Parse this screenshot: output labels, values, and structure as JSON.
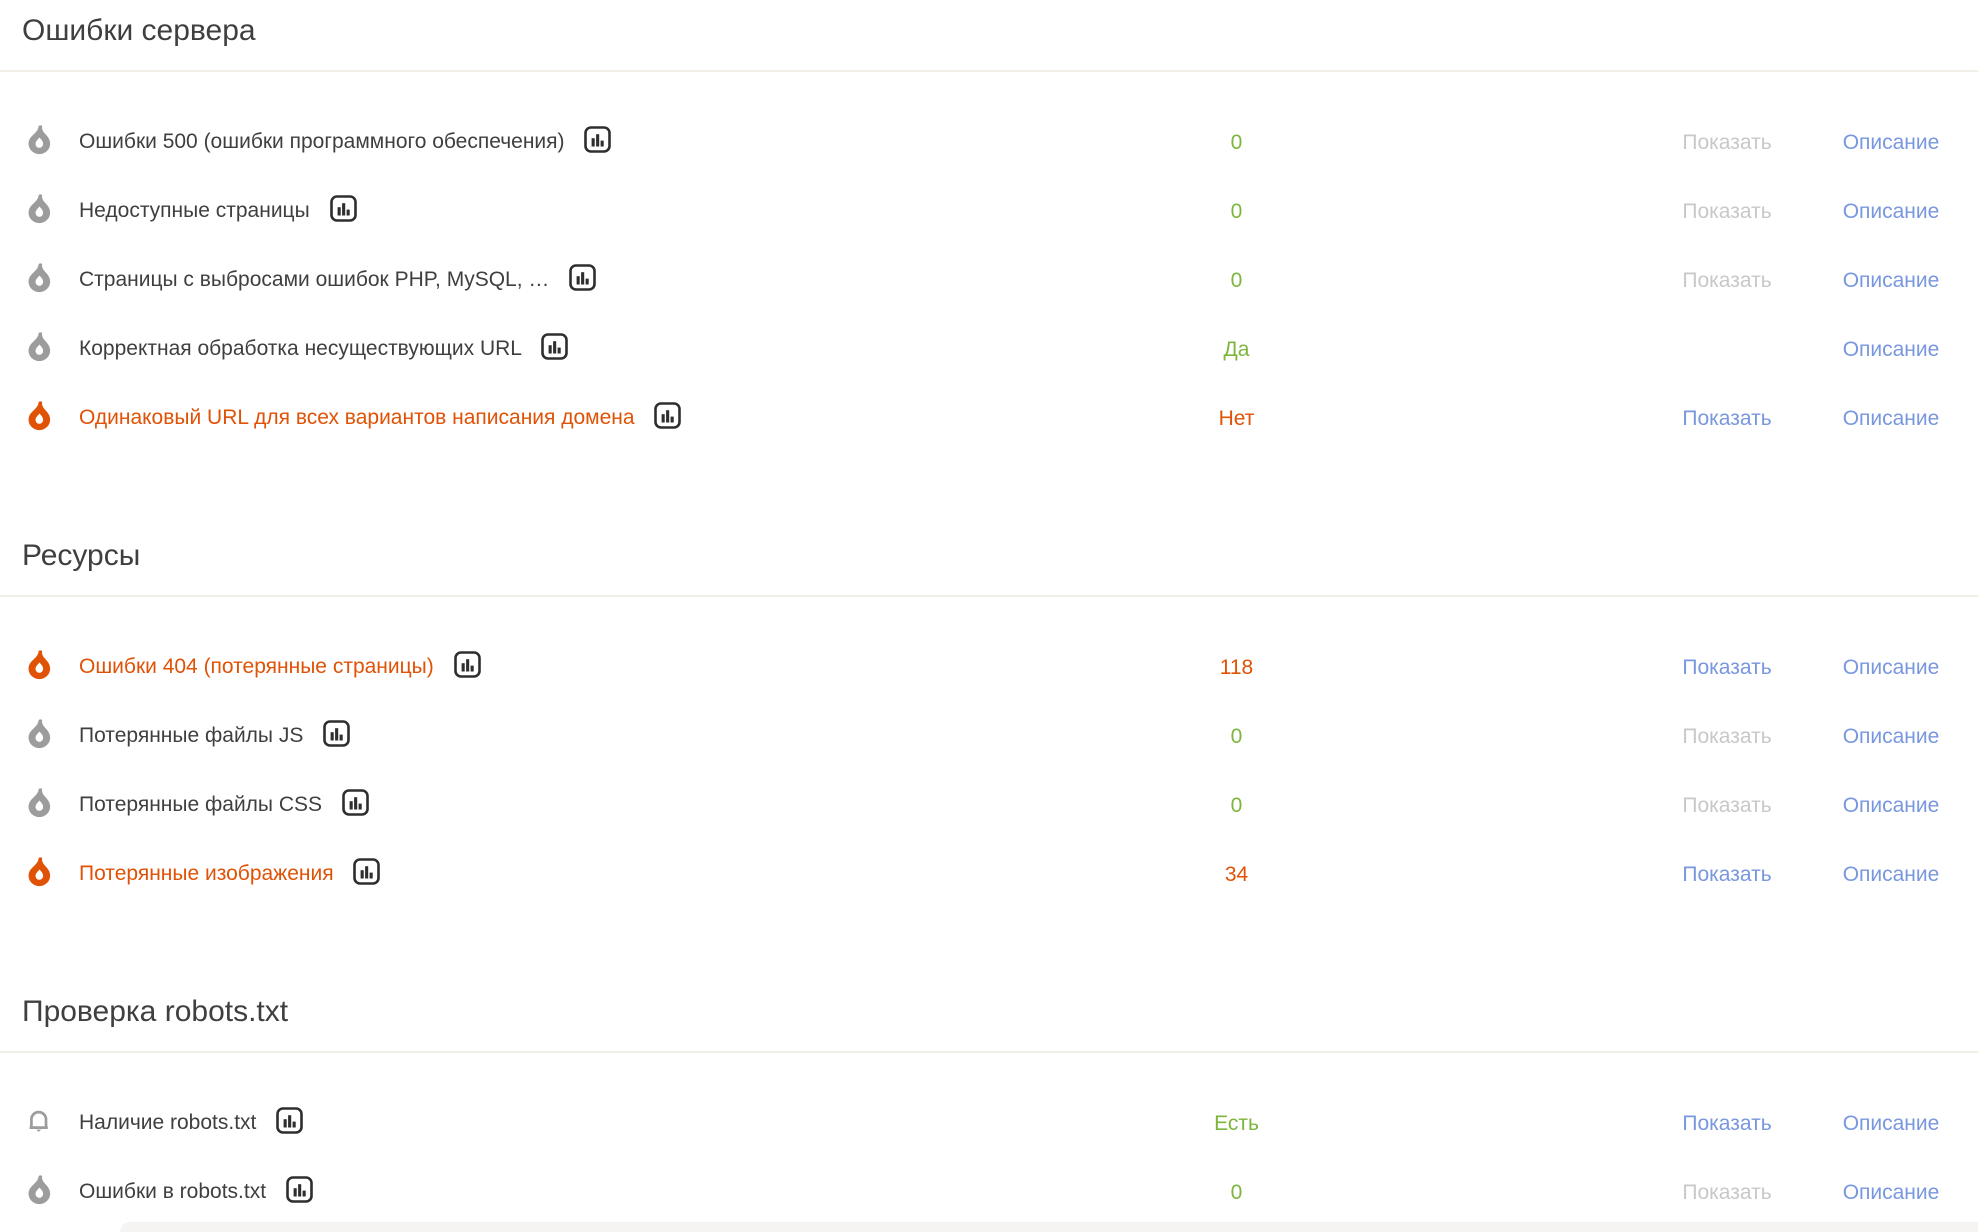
{
  "colors": {
    "accent_error": "#e05206",
    "accent_good": "#7db53d",
    "link_active": "#7897de",
    "link_disabled": "#c8c8c8",
    "icon_grey": "#9c9c9c",
    "text": "#3f3f3f",
    "divider": "#f1efe8"
  },
  "link_labels": {
    "show": "Показать",
    "description": "Описание"
  },
  "icon_names": {
    "flame": "flame-icon",
    "bell": "bell-icon",
    "chart": "bar-chart-icon"
  },
  "sections": [
    {
      "title": "Ошибки сервера",
      "rows": [
        {
          "icon": "flame",
          "severity": "normal",
          "label": "Ошибки 500 (ошибки программного обеспечения)",
          "value": "0",
          "value_state": "good",
          "show": "disabled"
        },
        {
          "icon": "flame",
          "severity": "normal",
          "label": "Недоступные страницы",
          "value": "0",
          "value_state": "good",
          "show": "disabled"
        },
        {
          "icon": "flame",
          "severity": "normal",
          "label": "Страницы с выбросами ошибок PHP, MySQL, …",
          "value": "0",
          "value_state": "good",
          "show": "disabled"
        },
        {
          "icon": "flame",
          "severity": "normal",
          "label": "Корректная обработка несуществующих URL",
          "value": "Да",
          "value_state": "good",
          "show": "none"
        },
        {
          "icon": "flame",
          "severity": "error",
          "label": "Одинаковый URL для всех вариантов написания домена",
          "value": "Нет",
          "value_state": "bad",
          "show": "active"
        }
      ]
    },
    {
      "title": "Ресурсы",
      "rows": [
        {
          "icon": "flame",
          "severity": "error",
          "label": "Ошибки 404 (потерянные страницы)",
          "value": "118",
          "value_state": "bad",
          "show": "active"
        },
        {
          "icon": "flame",
          "severity": "normal",
          "label": "Потерянные файлы JS",
          "value": "0",
          "value_state": "good",
          "show": "disabled"
        },
        {
          "icon": "flame",
          "severity": "normal",
          "label": "Потерянные файлы CSS",
          "value": "0",
          "value_state": "good",
          "show": "disabled"
        },
        {
          "icon": "flame",
          "severity": "error",
          "label": "Потерянные изображения",
          "value": "34",
          "value_state": "bad",
          "show": "active"
        }
      ]
    },
    {
      "title": "Проверка robots.txt",
      "rows": [
        {
          "icon": "bell",
          "severity": "normal",
          "label": "Наличие robots.txt",
          "value": "Есть",
          "value_state": "good",
          "show": "active"
        },
        {
          "icon": "flame",
          "severity": "normal",
          "label": "Ошибки в robots.txt",
          "value": "0",
          "value_state": "good",
          "show": "disabled"
        }
      ]
    }
  ]
}
